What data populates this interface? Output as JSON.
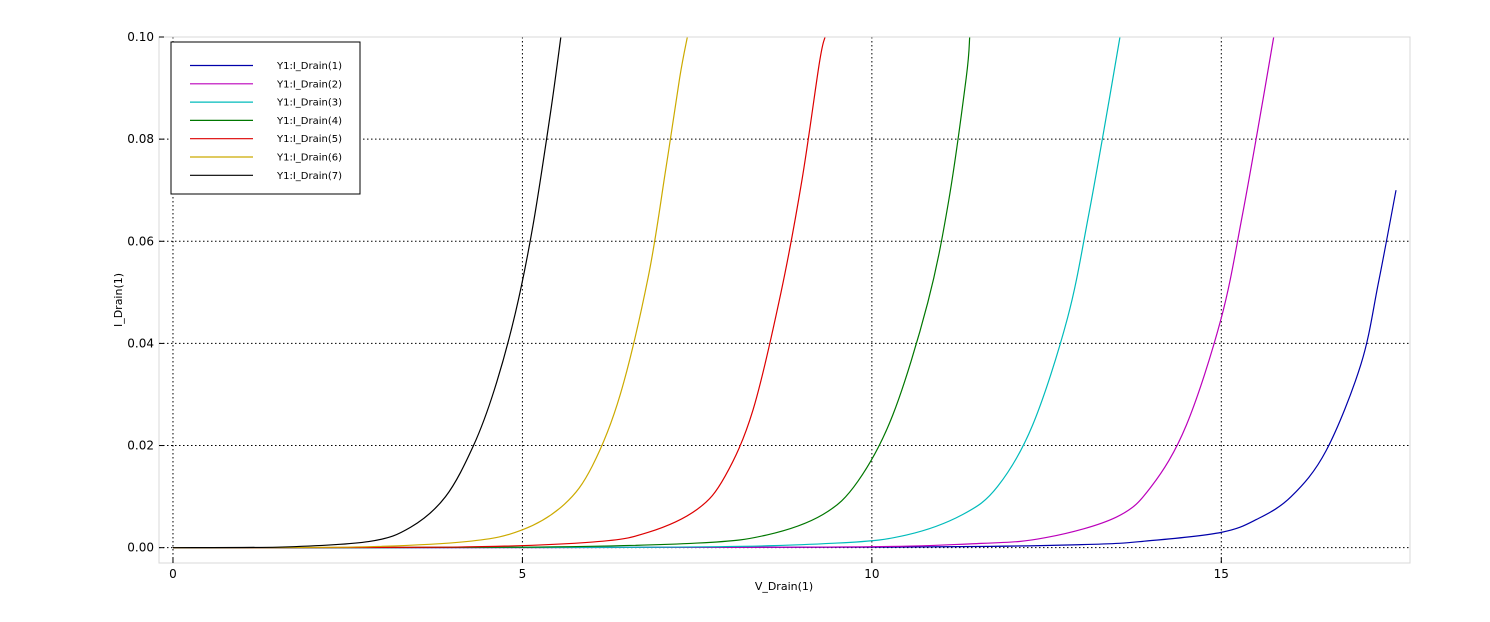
{
  "chart_data": {
    "type": "line",
    "xlabel": "V_Drain(1)",
    "ylabel": "I_Drain(1)",
    "xlim": [
      -0.2,
      17.7
    ],
    "ylim": [
      -0.003,
      0.1
    ],
    "x_ticks": [
      0,
      5,
      10,
      15
    ],
    "x_tick_labels": [
      "0",
      "5",
      "10",
      "15"
    ],
    "y_ticks": [
      0.0,
      0.02,
      0.04,
      0.06,
      0.08,
      0.1
    ],
    "y_tick_labels": [
      "0.00",
      "0.02",
      "0.04",
      "0.06",
      "0.08",
      "0.10"
    ],
    "grid": true,
    "legend_position": "top-left",
    "series": [
      {
        "name": "Y1:I_Drain(1)",
        "color": "#0000aa",
        "x": [
          0,
          10,
          13,
          14,
          15,
          15.5,
          16,
          16.5,
          17,
          17.25,
          17.5
        ],
        "y": [
          0,
          0.0001,
          0.0006,
          0.0014,
          0.003,
          0.0055,
          0.01,
          0.019,
          0.036,
          0.052,
          0.07
        ]
      },
      {
        "name": "Y1:I_Drain(2)",
        "color": "#bb00bb",
        "x": [
          0,
          9,
          11.5,
          12.5,
          13.5,
          14,
          14.5,
          15,
          15.3,
          15.6,
          15.75
        ],
        "y": [
          0,
          0.0001,
          0.0008,
          0.002,
          0.006,
          0.012,
          0.024,
          0.045,
          0.065,
          0.088,
          0.1
        ]
      },
      {
        "name": "Y1:I_Drain(3)",
        "color": "#00bbbb",
        "x": [
          0,
          7,
          9.5,
          10.5,
          11.3,
          11.8,
          12.3,
          12.8,
          13.1,
          13.4,
          13.55
        ],
        "y": [
          0,
          0.0001,
          0.0009,
          0.0025,
          0.0065,
          0.012,
          0.024,
          0.045,
          0.065,
          0.088,
          0.1
        ]
      },
      {
        "name": "Y1:I_Drain(4)",
        "color": "#007700",
        "x": [
          0,
          5,
          7.5,
          8.5,
          9.3,
          9.8,
          10.3,
          10.8,
          11.1,
          11.35,
          11.4
        ],
        "y": [
          0,
          0.0001,
          0.0009,
          0.0025,
          0.0065,
          0.013,
          0.026,
          0.048,
          0.068,
          0.092,
          0.1
        ]
      },
      {
        "name": "Y1:I_Drain(5)",
        "color": "#dd0000",
        "x": [
          0,
          4,
          6,
          6.8,
          7.5,
          7.9,
          8.3,
          8.7,
          9.0,
          9.25,
          9.33
        ],
        "y": [
          0,
          0.0001,
          0.0011,
          0.003,
          0.0075,
          0.014,
          0.027,
          0.05,
          0.072,
          0.095,
          0.1
        ]
      },
      {
        "name": "Y1:I_Drain(6)",
        "color": "#ccaa00",
        "x": [
          0,
          2.5,
          4.2,
          5,
          5.6,
          6.0,
          6.4,
          6.8,
          7.05,
          7.25,
          7.36
        ],
        "y": [
          0,
          0.0001,
          0.0012,
          0.0035,
          0.0085,
          0.016,
          0.03,
          0.053,
          0.074,
          0.092,
          0.1
        ]
      },
      {
        "name": "Y1:I_Drain(7)",
        "color": "#000000",
        "x": [
          0,
          1.5,
          2.8,
          3.4,
          3.9,
          4.3,
          4.6,
          4.9,
          5.15,
          5.4,
          5.55
        ],
        "y": [
          0,
          0.0001,
          0.0012,
          0.004,
          0.01,
          0.02,
          0.031,
          0.046,
          0.063,
          0.085,
          0.1
        ]
      }
    ]
  }
}
